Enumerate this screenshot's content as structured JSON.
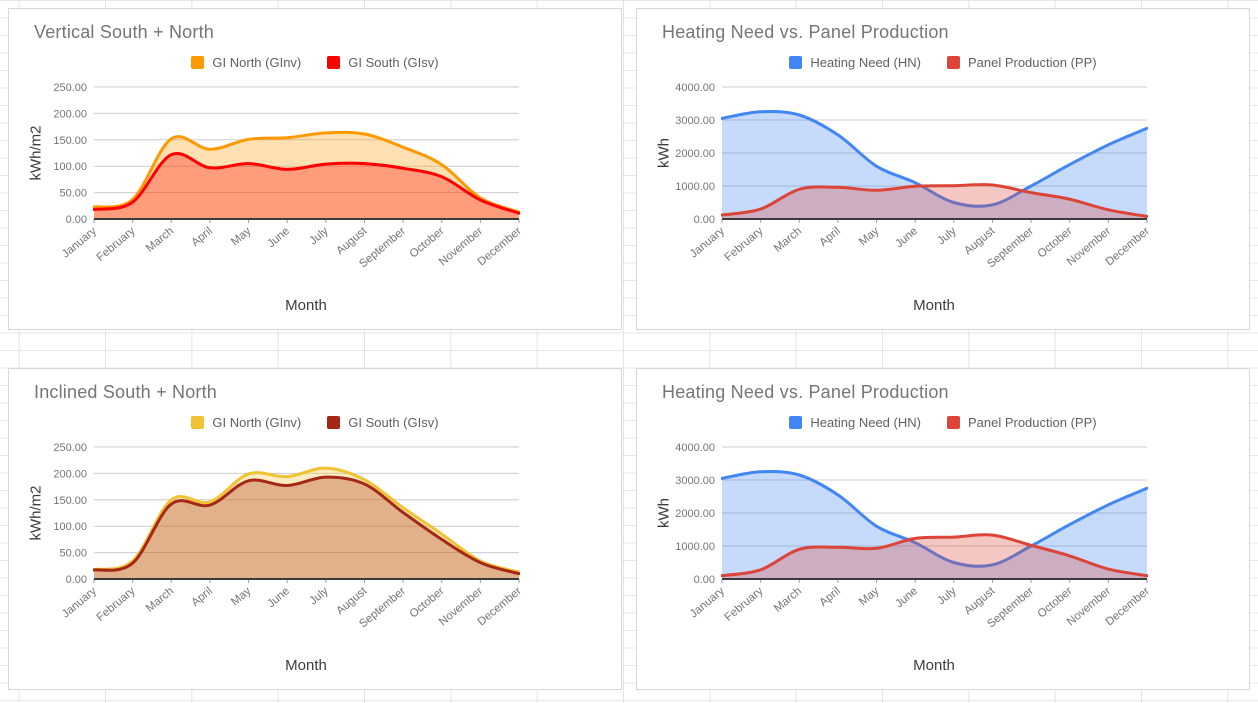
{
  "page": {
    "background": "#ffffff",
    "sheet_gridline_color": "#e4e4e4",
    "panel_border_color": "#d7d7d7",
    "gridline_color": "#cccccc",
    "axis_line_color": "#3b3b3b",
    "tick_label_color": "#757575",
    "title_color": "#757575"
  },
  "chart_data": [
    {
      "type": "area",
      "title": "Vertical South + North",
      "xlabel": "Month",
      "ylabel": "kWh/m2",
      "ylim": [
        0,
        250
      ],
      "y_tick_labels": [
        "0.00",
        "50.00",
        "100.00",
        "150.00",
        "200.00",
        "250.00"
      ],
      "grid": true,
      "legend_position": "top",
      "categories": [
        "January",
        "February",
        "March",
        "April",
        "May",
        "June",
        "July",
        "August",
        "September",
        "October",
        "November",
        "December"
      ],
      "series": [
        {
          "name": "GI North (GInv)",
          "color": "#FF9900",
          "values": [
            23,
            37,
            152,
            132,
            151,
            154,
            163,
            161,
            136,
            103,
            40,
            13
          ]
        },
        {
          "name": "GI South (GIsv)",
          "color": "#FF0000",
          "values": [
            18,
            32,
            122,
            97,
            105,
            94,
            104,
            105,
            96,
            80,
            36,
            11
          ]
        }
      ]
    },
    {
      "type": "area",
      "title": "Heating Need vs. Panel Production",
      "xlabel": "Month",
      "ylabel": "kWh",
      "ylim": [
        0,
        4000
      ],
      "y_tick_labels": [
        "0.00",
        "1000.00",
        "2000.00",
        "3000.00",
        "4000.00"
      ],
      "grid": true,
      "legend_position": "top",
      "categories": [
        "January",
        "February",
        "March",
        "April",
        "May",
        "June",
        "July",
        "August",
        "September",
        "October",
        "November",
        "December"
      ],
      "series": [
        {
          "name": "Heating Need (HN)",
          "color": "#4285F4",
          "values": [
            3050,
            3250,
            3150,
            2550,
            1600,
            1100,
            500,
            430,
            1000,
            1650,
            2250,
            2750
          ]
        },
        {
          "name": "Panel Production (PP)",
          "color": "#DB4437",
          "values": [
            120,
            300,
            900,
            960,
            870,
            990,
            1010,
            1030,
            800,
            600,
            280,
            80
          ]
        }
      ]
    },
    {
      "type": "area",
      "title": "Inclined South + North",
      "xlabel": "Month",
      "ylabel": "kWh/m2",
      "ylim": [
        0,
        250
      ],
      "y_tick_labels": [
        "0.00",
        "50.00",
        "100.00",
        "150.00",
        "200.00",
        "250.00"
      ],
      "grid": true,
      "legend_position": "top",
      "categories": [
        "January",
        "February",
        "March",
        "April",
        "May",
        "June",
        "July",
        "August",
        "September",
        "October",
        "November",
        "December"
      ],
      "series": [
        {
          "name": "GI North (GInv)",
          "color": "#F1C232",
          "values": [
            18,
            34,
            150,
            146,
            199,
            194,
            210,
            188,
            135,
            85,
            34,
            13
          ]
        },
        {
          "name": "GI South (GIsv)",
          "color": "#A52714",
          "values": [
            17,
            30,
            142,
            140,
            186,
            177,
            193,
            180,
            126,
            75,
            31,
            10
          ]
        }
      ]
    },
    {
      "type": "area",
      "title": "Heating Need vs. Panel Production",
      "xlabel": "Month",
      "ylabel": "kWh",
      "ylim": [
        0,
        4000
      ],
      "y_tick_labels": [
        "0.00",
        "1000.00",
        "2000.00",
        "3000.00",
        "4000.00"
      ],
      "grid": true,
      "legend_position": "top",
      "categories": [
        "January",
        "February",
        "March",
        "April",
        "May",
        "June",
        "July",
        "August",
        "September",
        "October",
        "November",
        "December"
      ],
      "series": [
        {
          "name": "Heating Need (HN)",
          "color": "#4285F4",
          "values": [
            3050,
            3250,
            3150,
            2550,
            1600,
            1100,
            500,
            430,
            1000,
            1650,
            2250,
            2750
          ]
        },
        {
          "name": "Panel Production (PP)",
          "color": "#DB4437",
          "values": [
            100,
            280,
            900,
            960,
            930,
            1230,
            1270,
            1330,
            1020,
            700,
            300,
            100
          ]
        }
      ]
    }
  ]
}
